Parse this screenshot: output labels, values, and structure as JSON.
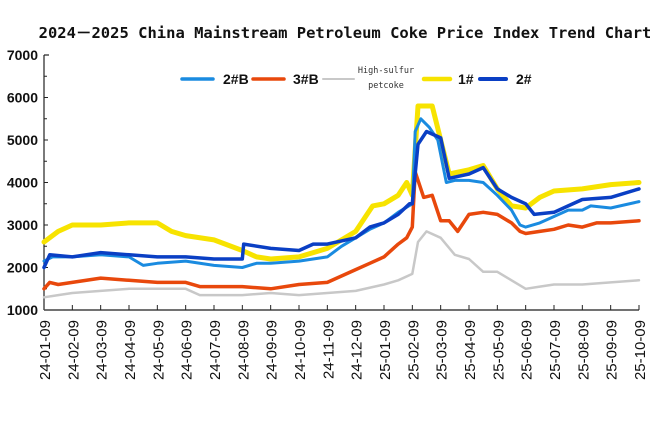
{
  "chart_data": {
    "type": "line",
    "title": "2024－2025 China Mainstream Petroleum Coke Price Index Trend Chart",
    "xlabel": "",
    "ylabel": "",
    "ylim": [
      1000,
      7000
    ],
    "yticks": [
      "1000",
      "2000",
      "3000",
      "4000",
      "5000",
      "6000",
      "7000"
    ],
    "ytick_values": [
      1000,
      2000,
      3000,
      4000,
      5000,
      6000,
      7000
    ],
    "categories": [
      "24-01-09",
      "24-02-09",
      "24-03-09",
      "24-04-09",
      "24-05-09",
      "24-06-09",
      "24-07-09",
      "24-08-09",
      "24-09-09",
      "24-10-09",
      "24-11-09",
      "24-12-09",
      "25-01-09",
      "25-02-09",
      "25-03-09",
      "25-04-09",
      "25-05-09",
      "25-06-09",
      "25-07-09",
      "25-08-09",
      "25-09-09",
      "25-10-09"
    ],
    "grid": false,
    "legend_position": "top-center",
    "series": [
      {
        "name": "2#B",
        "color": "#1a8be0",
        "x": [
          0,
          0.3,
          1,
          2,
          3,
          3.5,
          4,
          5,
          6,
          7,
          7.5,
          8,
          9,
          10,
          10.5,
          11,
          11.5,
          12,
          12.5,
          13,
          13.1,
          13.3,
          13.6,
          13.9,
          14.2,
          14.5,
          15,
          15.5,
          16,
          16.5,
          16.8,
          17,
          17.5,
          18,
          18.5,
          19,
          19.3,
          20,
          21
        ],
        "values": [
          2150,
          2250,
          2250,
          2300,
          2250,
          2050,
          2100,
          2150,
          2050,
          2000,
          2100,
          2100,
          2150,
          2250,
          2500,
          2700,
          2900,
          3050,
          3300,
          3500,
          5200,
          5500,
          5300,
          5000,
          4000,
          4050,
          4050,
          4000,
          3700,
          3350,
          3000,
          2950,
          3050,
          3200,
          3350,
          3350,
          3450,
          3400,
          3550
        ]
      },
      {
        "name": "3#B",
        "color": "#e8480c",
        "x": [
          0,
          0.2,
          0.5,
          1,
          2,
          3,
          4,
          5,
          5.5,
          6,
          7,
          8,
          9,
          10,
          10.5,
          11,
          11.5,
          12,
          12.5,
          12.8,
          13,
          13.1,
          13.4,
          13.7,
          14,
          14.3,
          14.6,
          15,
          15.5,
          16,
          16.5,
          16.8,
          17,
          17.5,
          18,
          18.5,
          19,
          19.5,
          20,
          21
        ],
        "values": [
          1500,
          1650,
          1600,
          1650,
          1750,
          1700,
          1650,
          1650,
          1550,
          1550,
          1550,
          1500,
          1600,
          1650,
          1800,
          1950,
          2100,
          2250,
          2550,
          2700,
          2950,
          4250,
          3650,
          3700,
          3100,
          3100,
          2850,
          3250,
          3300,
          3250,
          3050,
          2850,
          2800,
          2850,
          2900,
          3000,
          2950,
          3050,
          3050,
          3100
        ]
      },
      {
        "name": "High-sulfur petcoke",
        "color": "#c8c8c8",
        "x": [
          0,
          0.5,
          1,
          2,
          3,
          4,
          5,
          5.5,
          6,
          7,
          8,
          9,
          10,
          11,
          12,
          12.5,
          13,
          13.2,
          13.5,
          14,
          14.5,
          15,
          15.5,
          16,
          16.5,
          17,
          17.5,
          18,
          19,
          20,
          21
        ],
        "values": [
          1300,
          1350,
          1400,
          1450,
          1500,
          1500,
          1500,
          1350,
          1350,
          1350,
          1400,
          1350,
          1400,
          1450,
          1600,
          1700,
          1850,
          2600,
          2850,
          2700,
          2300,
          2200,
          1900,
          1900,
          1700,
          1500,
          1550,
          1600,
          1600,
          1650,
          1700
        ]
      },
      {
        "name": "1#",
        "color": "#f7e300",
        "x": [
          0,
          0.5,
          1,
          2,
          3,
          4,
          4.5,
          5,
          6,
          7,
          7.5,
          8,
          9,
          10,
          11,
          11.3,
          11.6,
          12,
          12.5,
          12.8,
          13,
          13.2,
          13.7,
          14,
          14.3,
          15,
          15.5,
          16,
          16.5,
          17,
          17.5,
          18,
          19,
          20,
          21
        ],
        "values": [
          2600,
          2850,
          3000,
          3000,
          3050,
          3050,
          2850,
          2750,
          2650,
          2400,
          2250,
          2200,
          2250,
          2450,
          2850,
          3150,
          3450,
          3500,
          3700,
          4000,
          3700,
          5800,
          5800,
          5000,
          4200,
          4300,
          4400,
          3850,
          3450,
          3400,
          3650,
          3800,
          3850,
          3950,
          4000
        ]
      },
      {
        "name": "2#",
        "color": "#0a3fc4",
        "x": [
          0,
          0.2,
          1,
          2,
          3,
          4,
          5,
          6,
          7,
          7.05,
          8,
          9,
          9.5,
          10,
          11,
          11.5,
          12,
          12.5,
          12.9,
          13,
          13.2,
          13.5,
          14,
          14.3,
          15,
          15.5,
          16,
          16.5,
          17,
          17.3,
          18,
          18.5,
          19,
          20,
          21
        ],
        "values": [
          2000,
          2300,
          2250,
          2350,
          2300,
          2250,
          2250,
          2200,
          2200,
          2550,
          2450,
          2400,
          2550,
          2550,
          2700,
          2950,
          3050,
          3250,
          3500,
          3500,
          4900,
          5200,
          5050,
          4100,
          4200,
          4350,
          3850,
          3650,
          3500,
          3250,
          3300,
          3450,
          3600,
          3650,
          3850
        ]
      }
    ]
  }
}
